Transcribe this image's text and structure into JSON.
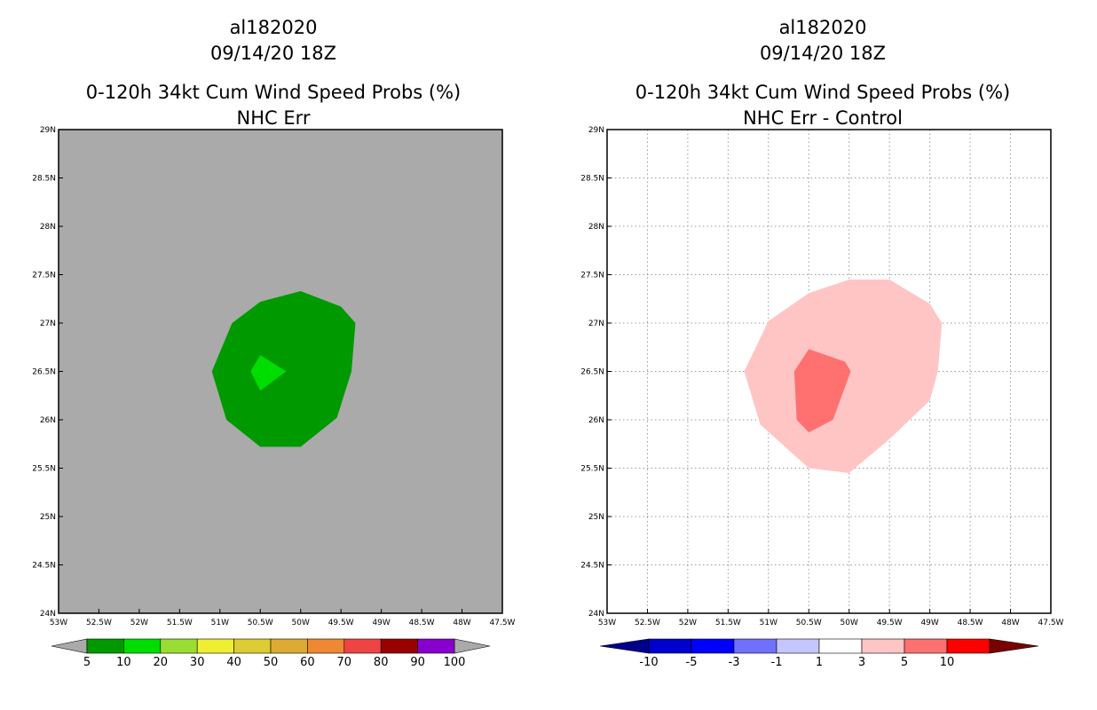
{
  "chart_data": [
    {
      "type": "heatmap",
      "title_lines": [
        "al182020",
        "09/14/20 18Z",
        "0-120h 34kt Cum Wind Speed Probs (%)",
        "NHC Err"
      ],
      "x_ticks": [
        "53W",
        "52.5W",
        "52W",
        "51.5W",
        "51W",
        "50.5W",
        "50W",
        "49.5W",
        "49W",
        "48.5W",
        "48W",
        "47.5W"
      ],
      "y_ticks": [
        "24N",
        "24.5N",
        "25N",
        "25.5N",
        "26N",
        "26.5N",
        "27N",
        "27.5N",
        "28N",
        "28.5N",
        "29N"
      ],
      "xlim": [
        -53,
        -47.5
      ],
      "ylim": [
        24,
        29
      ],
      "grid": false,
      "background_color": "#aaaaaa",
      "regions": [
        {
          "name": "prob-5-10",
          "color": "#009900",
          "polygon": [
            [
              -50.5,
              27.22
            ],
            [
              -50.0,
              27.33
            ],
            [
              -49.5,
              27.17
            ],
            [
              -49.32,
              27.0
            ],
            [
              -49.37,
              26.5
            ],
            [
              -49.55,
              26.02
            ],
            [
              -50.0,
              25.72
            ],
            [
              -50.5,
              25.72
            ],
            [
              -50.92,
              26.0
            ],
            [
              -51.1,
              26.5
            ],
            [
              -50.85,
              27.0
            ]
          ]
        },
        {
          "name": "prob-10-20",
          "color": "#00dd00",
          "polygon": [
            [
              -50.5,
              26.67
            ],
            [
              -50.18,
              26.5
            ],
            [
              -50.5,
              26.3
            ],
            [
              -50.62,
              26.5
            ]
          ]
        }
      ],
      "colorbar": {
        "labels": [
          "5",
          "10",
          "20",
          "30",
          "40",
          "50",
          "60",
          "70",
          "80",
          "90",
          "100"
        ],
        "colors": [
          "#009900",
          "#00dd00",
          "#99dd33",
          "#eeee33",
          "#ddcc33",
          "#ddaa33",
          "#ee8833",
          "#ee4444",
          "#990000",
          "#8800cc"
        ],
        "under_color": "#aaaaaa",
        "over_color": "#aaaaaa"
      }
    },
    {
      "type": "heatmap",
      "title_lines": [
        "al182020",
        "09/14/20 18Z",
        "0-120h 34kt Cum Wind Speed Probs (%)",
        "NHC Err - Control"
      ],
      "x_ticks": [
        "53W",
        "52.5W",
        "52W",
        "51.5W",
        "51W",
        "50.5W",
        "50W",
        "49.5W",
        "49W",
        "48.5W",
        "48W",
        "47.5W"
      ],
      "y_ticks": [
        "24N",
        "24.5N",
        "25N",
        "25.5N",
        "26N",
        "26.5N",
        "27N",
        "27.5N",
        "28N",
        "28.5N",
        "29N"
      ],
      "xlim": [
        -53,
        -47.5
      ],
      "ylim": [
        24,
        29
      ],
      "grid": true,
      "background_color": "#ffffff",
      "regions": [
        {
          "name": "diff-1-3",
          "color": "#ffc5c5",
          "polygon": [
            [
              -51.0,
              27.02
            ],
            [
              -50.5,
              27.31
            ],
            [
              -50.0,
              27.45
            ],
            [
              -49.5,
              27.45
            ],
            [
              -49.0,
              27.2
            ],
            [
              -48.85,
              27.0
            ],
            [
              -48.9,
              26.5
            ],
            [
              -49.0,
              26.2
            ],
            [
              -49.5,
              25.8
            ],
            [
              -50.0,
              25.45
            ],
            [
              -50.5,
              25.5
            ],
            [
              -51.1,
              25.95
            ],
            [
              -51.3,
              26.5
            ]
          ]
        },
        {
          "name": "diff-3-5",
          "color": "#ff7070",
          "polygon": [
            [
              -50.5,
              26.73
            ],
            [
              -50.05,
              26.6
            ],
            [
              -49.98,
              26.5
            ],
            [
              -50.2,
              26.0
            ],
            [
              -50.5,
              25.87
            ],
            [
              -50.65,
              26.0
            ],
            [
              -50.68,
              26.5
            ]
          ]
        }
      ],
      "colorbar": {
        "labels": [
          "-10",
          "-5",
          "-3",
          "-1",
          "1",
          "3",
          "5",
          "10"
        ],
        "colors": [
          "#0000cc",
          "#0000ff",
          "#7070ff",
          "#c5c5ff",
          "#ffffff",
          "#ffc5c5",
          "#ff7070",
          "#ff0000"
        ],
        "under_color": "#00008b",
        "over_color": "#7a0000"
      }
    }
  ]
}
